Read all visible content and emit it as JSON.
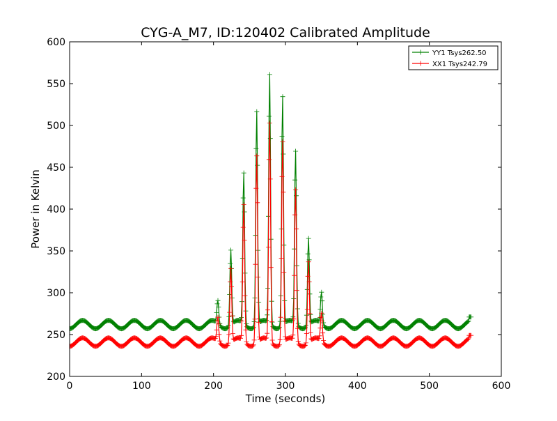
{
  "chart_data": {
    "type": "line",
    "title": "CYG-A_M7, ID:120402 Calibrated Amplitude",
    "xlabel": "Time (seconds)",
    "ylabel": "Power in Kelvin",
    "xlim": [
      0,
      600
    ],
    "ylim": [
      200,
      600
    ],
    "xticks": [
      "0",
      "100",
      "200",
      "300",
      "400",
      "500",
      "600"
    ],
    "yticks": [
      "200",
      "250",
      "300",
      "350",
      "400",
      "450",
      "500",
      "550",
      "600"
    ],
    "grid": false,
    "legend_position": "top-right",
    "marker": "plus",
    "series": [
      {
        "name": "YY1 Tsys262.50",
        "color": "#008000",
        "baseline_mean": 262,
        "baseline_ripple_amplitude": 5,
        "baseline_ripple_period_s": 36,
        "peaks": [
          {
            "x": 206,
            "y": 290
          },
          {
            "x": 224,
            "y": 352
          },
          {
            "x": 242,
            "y": 443
          },
          {
            "x": 260,
            "y": 518
          },
          {
            "x": 278,
            "y": 561
          },
          {
            "x": 296,
            "y": 536
          },
          {
            "x": 314,
            "y": 469
          },
          {
            "x": 332,
            "y": 366
          },
          {
            "x": 350,
            "y": 300
          }
        ],
        "x_end": 558,
        "end_value": 271
      },
      {
        "name": "XX1 Tsys242.79",
        "color": "#ff0000",
        "baseline_mean": 241,
        "baseline_ripple_amplitude": 5,
        "baseline_ripple_period_s": 36,
        "peaks": [
          {
            "x": 206,
            "y": 270
          },
          {
            "x": 224,
            "y": 330
          },
          {
            "x": 242,
            "y": 405
          },
          {
            "x": 260,
            "y": 465
          },
          {
            "x": 278,
            "y": 503
          },
          {
            "x": 296,
            "y": 482
          },
          {
            "x": 314,
            "y": 423
          },
          {
            "x": 332,
            "y": 338
          },
          {
            "x": 350,
            "y": 275
          }
        ],
        "x_end": 558,
        "end_value": 249
      }
    ]
  }
}
